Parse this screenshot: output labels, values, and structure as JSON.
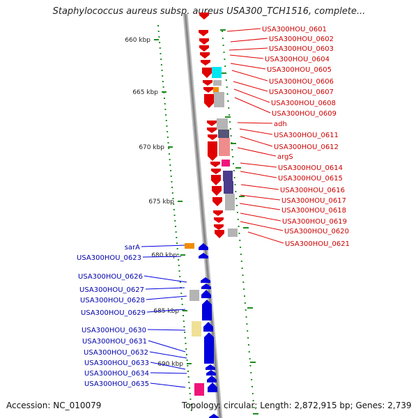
{
  "header": {
    "title": "Staphylococcus aureus subsp. aureus USA300_TCH1516, complete..."
  },
  "footer": {
    "accession": "Accession: NC_010079",
    "stats": "Topology: circular; Length: 2,872,915 bp; Genes: 2,739"
  },
  "colors": {
    "forward": "#e00000",
    "reverse": "#0000dd",
    "backbone": "#888888",
    "tick": "#1e8c1e",
    "gray": "#b4b4b4",
    "cyan": "#00e6f0",
    "orange": "#f08c00",
    "pink": "#f0147a",
    "purple": "#4b3c8c",
    "yellow": "#f0e096"
  },
  "scale_labels": [
    "660 kbp",
    "665 kbp",
    "670 kbp",
    "675 kbp",
    "680 kbp",
    "685 kbp",
    "690 kbp"
  ],
  "forward_genes": [
    "USA300HOU_0601",
    "USA300HOU_0602",
    "USA300HOU_0603",
    "USA300HOU_0604",
    "USA300HOU_0605",
    "USA300HOU_0606",
    "USA300HOU_0607",
    "USA300HOU_0608",
    "USA300HOU_0609",
    "adh",
    "USA300HOU_0611",
    "USA300HOU_0612",
    "argS",
    "USA300HOU_0614",
    "USA300HOU_0615",
    "USA300HOU_0616",
    "USA300HOU_0617",
    "USA300HOU_0618",
    "USA300HOU_0619",
    "USA300HOU_0620",
    "USA300HOU_0621"
  ],
  "reverse_genes": [
    "sarA",
    "USA300HOU_0623",
    "USA300HOU_0626",
    "USA300HOU_0627",
    "USA300HOU_0628",
    "USA300HOU_0629",
    "USA300HOU_0630",
    "USA300HOU_0631",
    "USA300HOU_0632",
    "USA300HOU_0633",
    "USA300HOU_0634",
    "USA300HOU_0635"
  ]
}
